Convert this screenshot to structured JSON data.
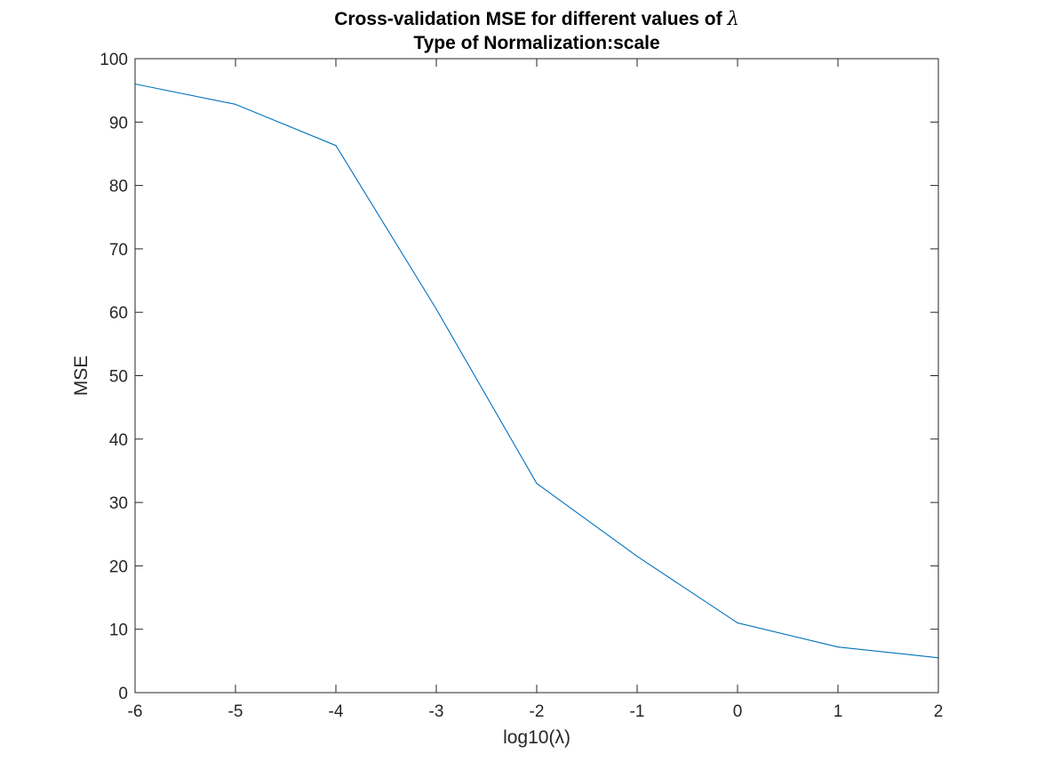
{
  "chart_data": {
    "type": "line",
    "title": [
      "Cross-validation MSE for different values of",
      "Type of Normalization:scale"
    ],
    "title_symbol": "λ",
    "xlabel": "log10(λ)",
    "ylabel": "MSE",
    "xlim": [
      -6,
      2
    ],
    "ylim": [
      0,
      100
    ],
    "xticks": [
      -6,
      -5,
      -4,
      -3,
      -2,
      -1,
      0,
      1,
      2
    ],
    "xtick_labels": [
      "-6",
      "-5",
      "-4",
      "-3",
      "-2",
      "-1",
      "0",
      "1",
      "2"
    ],
    "yticks": [
      0,
      10,
      20,
      30,
      40,
      50,
      60,
      70,
      80,
      90,
      100
    ],
    "ytick_labels": [
      "0",
      "10",
      "20",
      "30",
      "40",
      "50",
      "60",
      "70",
      "80",
      "90",
      "100"
    ],
    "grid": false,
    "legend": false,
    "line_color": "#0072BD",
    "series": [
      {
        "x": [
          -6,
          -5,
          -4,
          -3,
          -2,
          -1,
          0,
          1,
          2
        ],
        "y": [
          96,
          92.8,
          86.3,
          60.5,
          33,
          21.5,
          11,
          7.2,
          5.5
        ]
      }
    ]
  }
}
